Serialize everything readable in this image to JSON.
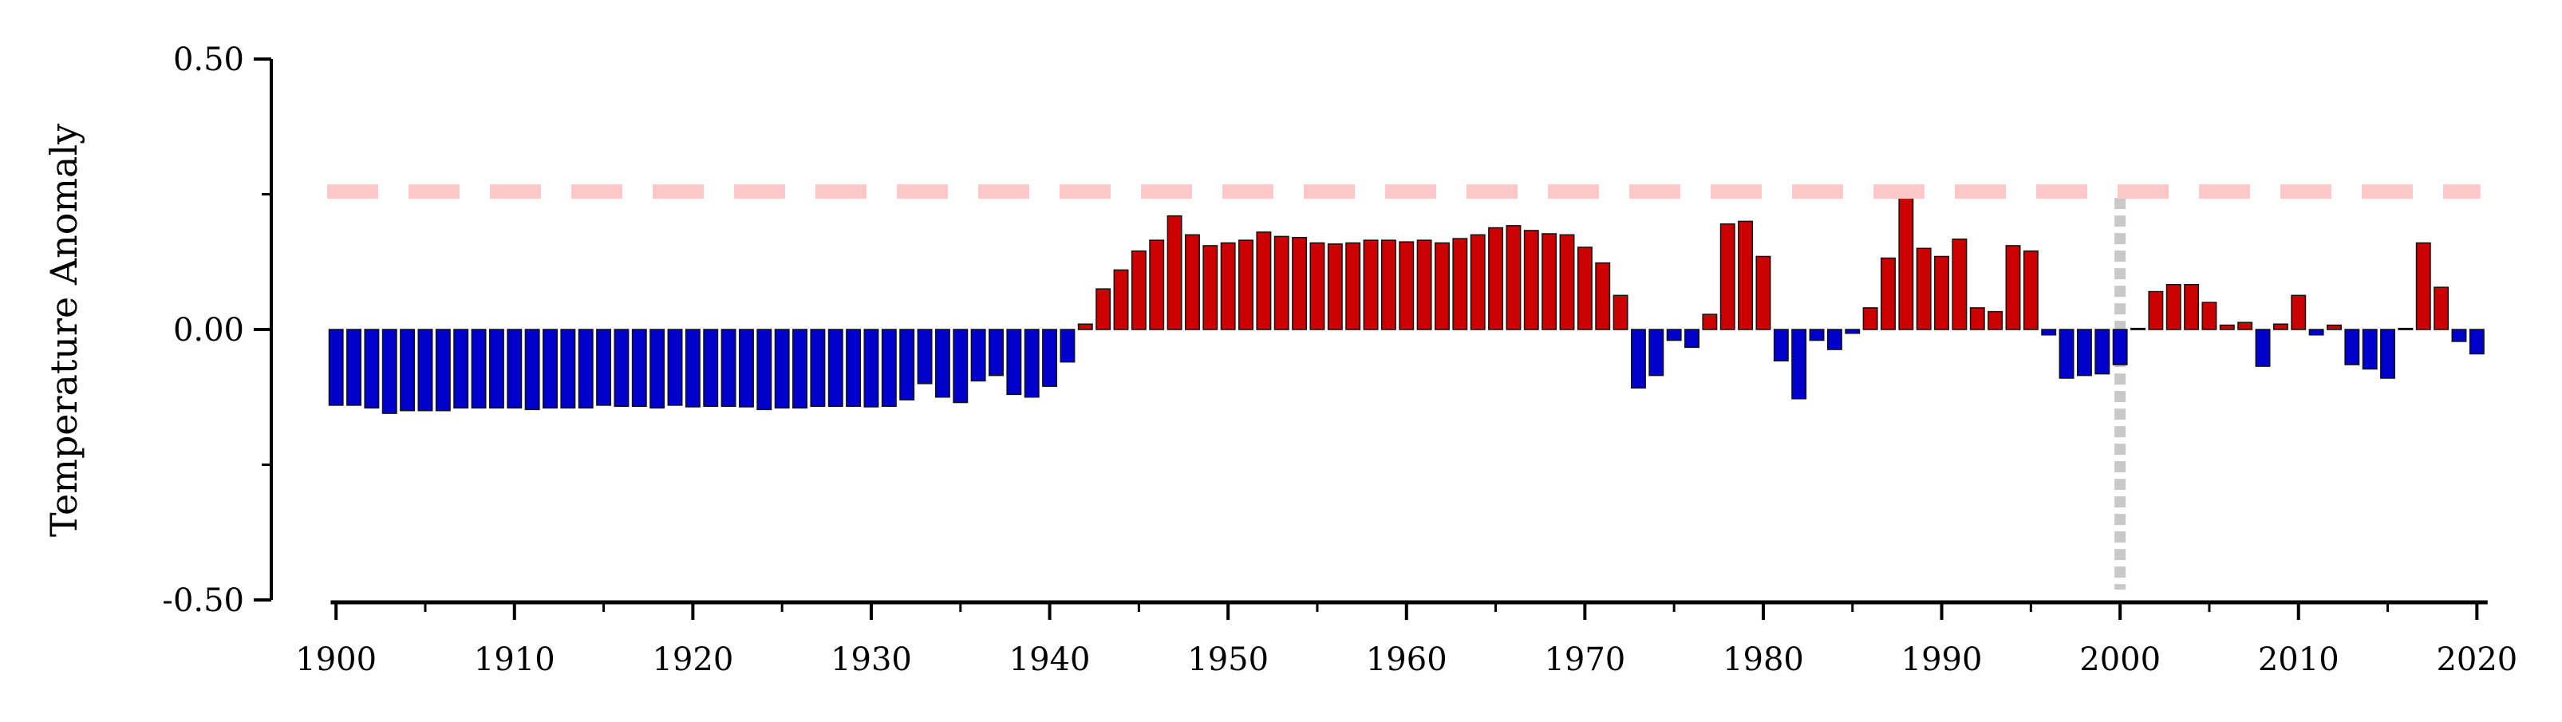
{
  "chart_data": {
    "type": "bar",
    "title": "",
    "xlabel": "",
    "ylabel": "Temperature Anomaly",
    "ylim": [
      -0.5,
      0.5
    ],
    "xlim": [
      1899.5,
      2020.7
    ],
    "yticks": [
      -0.5,
      0.0,
      0.5
    ],
    "ytick_labels": [
      "-0.50",
      "0.00",
      "0.50"
    ],
    "yminor_ticks": [
      -0.25,
      0.25
    ],
    "xticks": [
      1900,
      1910,
      1920,
      1930,
      1940,
      1950,
      1960,
      1970,
      1980,
      1990,
      2000,
      2010,
      2020
    ],
    "xtick_labels": [
      "1900",
      "1910",
      "1920",
      "1930",
      "1940",
      "1950",
      "1960",
      "1970",
      "1980",
      "1990",
      "2000",
      "2010",
      "2020"
    ],
    "grid": false,
    "legend": "none",
    "colors": {
      "positive": "#cc0000",
      "negative": "#0000cc",
      "bar_edge": "#111111",
      "threshold_line": "#ffc8c8",
      "reference_line": "#c8c8c8"
    },
    "threshold_line": {
      "y": 0.255,
      "style": "dashed"
    },
    "reference_line": {
      "x": 2000,
      "style": "dotted"
    },
    "years": [
      1900,
      1901,
      1902,
      1903,
      1904,
      1905,
      1906,
      1907,
      1908,
      1909,
      1910,
      1911,
      1912,
      1913,
      1914,
      1915,
      1916,
      1917,
      1918,
      1919,
      1920,
      1921,
      1922,
      1923,
      1924,
      1925,
      1926,
      1927,
      1928,
      1929,
      1930,
      1931,
      1932,
      1933,
      1934,
      1935,
      1936,
      1937,
      1938,
      1939,
      1940,
      1941,
      1942,
      1943,
      1944,
      1945,
      1946,
      1947,
      1948,
      1949,
      1950,
      1951,
      1952,
      1953,
      1954,
      1955,
      1956,
      1957,
      1958,
      1959,
      1960,
      1961,
      1962,
      1963,
      1964,
      1965,
      1966,
      1967,
      1968,
      1969,
      1970,
      1971,
      1972,
      1973,
      1974,
      1975,
      1976,
      1977,
      1978,
      1979,
      1980,
      1981,
      1982,
      1983,
      1984,
      1985,
      1986,
      1987,
      1988,
      1989,
      1990,
      1991,
      1992,
      1993,
      1994,
      1995,
      1996,
      1997,
      1998,
      1999,
      2000,
      2001,
      2002,
      2003,
      2004,
      2005,
      2006,
      2007,
      2008,
      2009,
      2010,
      2011,
      2012,
      2013,
      2014,
      2015,
      2016,
      2017,
      2018,
      2019,
      2020
    ],
    "values": [
      -0.14,
      -0.14,
      -0.145,
      -0.155,
      -0.15,
      -0.15,
      -0.15,
      -0.145,
      -0.145,
      -0.145,
      -0.145,
      -0.148,
      -0.145,
      -0.145,
      -0.145,
      -0.14,
      -0.142,
      -0.142,
      -0.145,
      -0.14,
      -0.143,
      -0.142,
      -0.142,
      -0.143,
      -0.148,
      -0.145,
      -0.145,
      -0.142,
      -0.142,
      -0.142,
      -0.143,
      -0.142,
      -0.13,
      -0.1,
      -0.125,
      -0.135,
      -0.095,
      -0.085,
      -0.12,
      -0.125,
      -0.105,
      -0.06,
      0.01,
      0.075,
      0.11,
      0.145,
      0.165,
      0.21,
      0.175,
      0.155,
      0.16,
      0.165,
      0.18,
      0.172,
      0.17,
      0.16,
      0.158,
      0.16,
      0.165,
      0.165,
      0.162,
      0.165,
      0.16,
      0.168,
      0.175,
      0.188,
      0.192,
      0.183,
      0.177,
      0.175,
      0.152,
      0.123,
      0.063,
      -0.108,
      -0.085,
      -0.02,
      -0.033,
      0.028,
      0.195,
      0.2,
      0.135,
      -0.058,
      -0.128,
      -0.02,
      -0.037,
      -0.007,
      0.04,
      0.132,
      0.258,
      0.15,
      0.135,
      0.167,
      0.04,
      0.033,
      0.155,
      0.145,
      -0.01,
      -0.09,
      -0.085,
      -0.082,
      -0.065,
      0.002,
      0.07,
      0.083,
      0.083,
      0.05,
      0.008,
      0.013,
      -0.068,
      0.01,
      0.063,
      -0.01,
      0.008,
      -0.065,
      -0.073,
      -0.09,
      0.002,
      0.16,
      0.078,
      -0.022,
      -0.045
    ]
  }
}
